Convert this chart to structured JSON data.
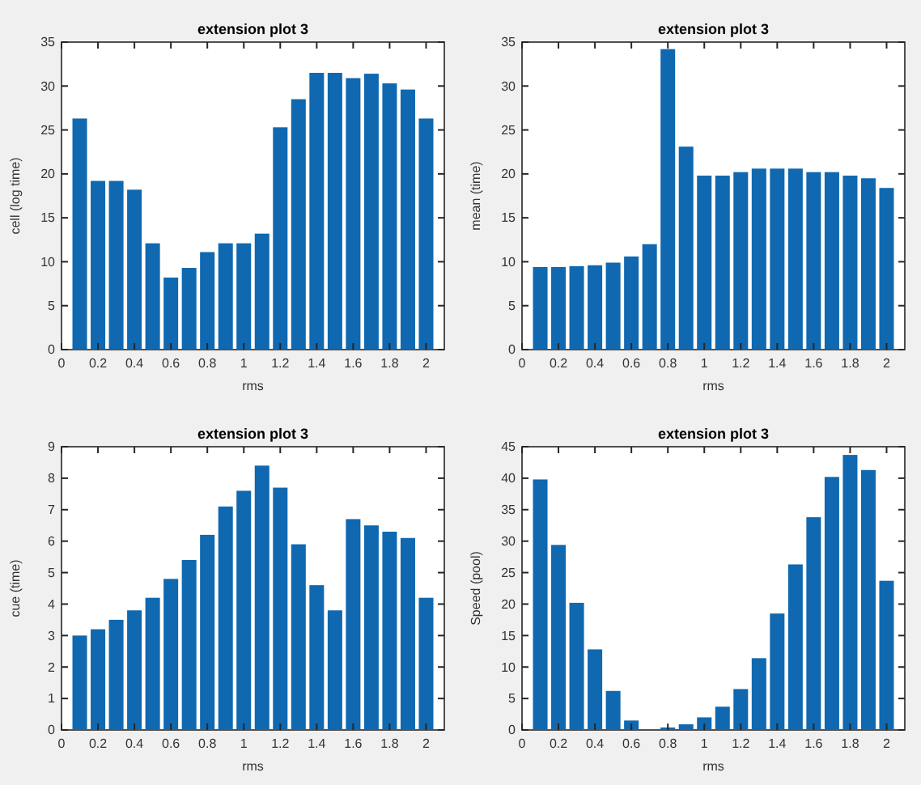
{
  "chart_data": [
    {
      "type": "bar",
      "title": "extension plot 3",
      "xlabel": "rms",
      "ylabel": "cell (log time)",
      "x": [
        0.1,
        0.2,
        0.3,
        0.4,
        0.5,
        0.6,
        0.7,
        0.8,
        0.9,
        1,
        1.1,
        1.2,
        1.3,
        1.4,
        1.5,
        1.6,
        1.7,
        1.8,
        1.9,
        2
      ],
      "values": [
        26.3,
        19.2,
        19.2,
        18.2,
        12.1,
        8.2,
        9.3,
        11.1,
        12.1,
        12.1,
        13.2,
        25.3,
        28.5,
        31.5,
        31.5,
        30.9,
        31.4,
        30.3,
        29.6,
        26.3
      ],
      "color": "#0f68b0",
      "xlim": [
        0,
        2.1
      ],
      "xticks": [
        0,
        0.2,
        0.4,
        0.6,
        0.8,
        1,
        1.2,
        1.4,
        1.6,
        1.8,
        2
      ],
      "ylim": [
        0,
        35
      ],
      "yticks": [
        0,
        5,
        10,
        15,
        20,
        25,
        30,
        35
      ]
    },
    {
      "type": "bar",
      "title": "extension plot 3",
      "xlabel": "rms",
      "ylabel": "mean (time)",
      "x": [
        0.1,
        0.2,
        0.3,
        0.4,
        0.5,
        0.6,
        0.7,
        0.8,
        0.9,
        1,
        1.1,
        1.2,
        1.3,
        1.4,
        1.5,
        1.6,
        1.7,
        1.8,
        1.9,
        2
      ],
      "values": [
        9.4,
        9.4,
        9.5,
        9.6,
        9.9,
        10.6,
        12,
        34.2,
        23.1,
        19.8,
        19.8,
        20.2,
        20.6,
        20.6,
        20.6,
        20.2,
        20.2,
        19.8,
        19.5,
        18.4
      ],
      "color": "#0f68b0",
      "xlim": [
        0,
        2.1
      ],
      "xticks": [
        0,
        0.2,
        0.4,
        0.6,
        0.8,
        1,
        1.2,
        1.4,
        1.6,
        1.8,
        2
      ],
      "ylim": [
        0,
        35
      ],
      "yticks": [
        0,
        5,
        10,
        15,
        20,
        25,
        30,
        35
      ]
    },
    {
      "type": "bar",
      "title": "extension plot 3",
      "xlabel": "rms",
      "ylabel": "cue (time)",
      "x": [
        0.1,
        0.2,
        0.3,
        0.4,
        0.5,
        0.6,
        0.7,
        0.8,
        0.9,
        1,
        1.1,
        1.2,
        1.3,
        1.4,
        1.5,
        1.6,
        1.7,
        1.8,
        1.9,
        2
      ],
      "values": [
        3,
        3.2,
        3.5,
        3.8,
        4.2,
        4.8,
        5.4,
        6.2,
        7.1,
        7.6,
        8.4,
        7.7,
        5.9,
        4.6,
        3.8,
        6.7,
        6.5,
        6.3,
        6.1,
        4.2
      ],
      "color": "#0f68b0",
      "xlim": [
        0,
        2.1
      ],
      "xticks": [
        0,
        0.2,
        0.4,
        0.6,
        0.8,
        1,
        1.2,
        1.4,
        1.6,
        1.8,
        2
      ],
      "ylim": [
        0,
        9
      ],
      "yticks": [
        0,
        1,
        2,
        3,
        4,
        5,
        6,
        7,
        8,
        9
      ]
    },
    {
      "type": "bar",
      "title": "extension plot 3",
      "xlabel": "rms",
      "ylabel": "Speed (pool)",
      "x": [
        0.1,
        0.2,
        0.3,
        0.4,
        0.5,
        0.6,
        0.7,
        0.8,
        0.9,
        1,
        1.1,
        1.2,
        1.3,
        1.4,
        1.5,
        1.6,
        1.7,
        1.8,
        1.9,
        2
      ],
      "values": [
        39.8,
        29.4,
        20.2,
        12.8,
        6.2,
        1.5,
        0.1,
        0.4,
        0.9,
        2,
        3.7,
        6.5,
        11.4,
        18.5,
        26.3,
        33.8,
        40.2,
        43.7,
        41.3,
        23.7
      ],
      "color": "#0f68b0",
      "xlim": [
        0,
        2.1
      ],
      "xticks": [
        0,
        0.2,
        0.4,
        0.6,
        0.8,
        1,
        1.2,
        1.4,
        1.6,
        1.8,
        2
      ],
      "ylim": [
        0,
        45
      ],
      "yticks": [
        0,
        5,
        10,
        15,
        20,
        25,
        30,
        35,
        40,
        45
      ]
    }
  ]
}
